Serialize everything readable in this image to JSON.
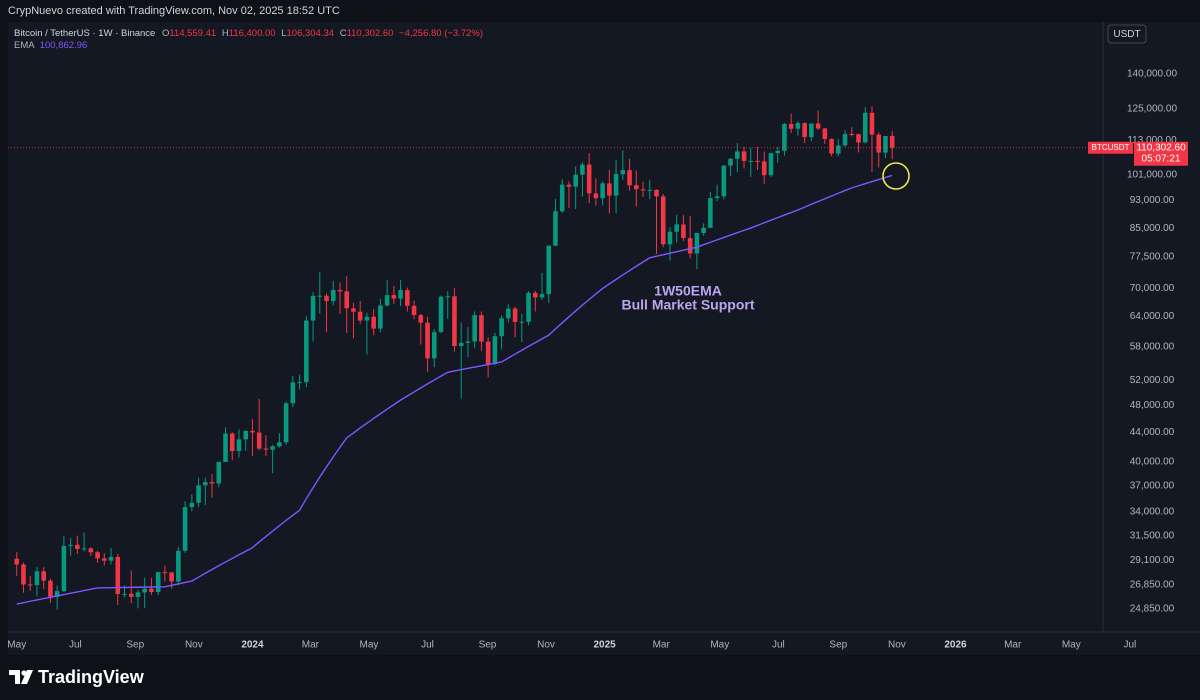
{
  "header": {
    "attribution": "CrypNuevo created with TradingView.com, Nov 02, 2025 18:52 UTC"
  },
  "legend": {
    "symbol": "Bitcoin / TetherUS · 1W · Binance",
    "ohlc": [
      {
        "key": "O",
        "text": "114,559.41"
      },
      {
        "key": "H",
        "text": "116,400.00"
      },
      {
        "key": "L",
        "text": "106,304.34"
      },
      {
        "key": "C",
        "text": "110,302.60"
      }
    ],
    "change": "−4,256.80 (−3.72%)",
    "indicator_value": "100,862.96"
  },
  "currency_button": "USDT",
  "price_tag": {
    "price": "110,302.60",
    "countdown": "05:07:21"
  },
  "footer": {
    "brand": "TradingView"
  },
  "chart_data": {
    "type": "candlestick",
    "log_scale": true,
    "grid": false,
    "annotation": [
      "1W50EMA",
      "Bull Market Support"
    ],
    "xlim": [
      -1.3,
      166.8
    ],
    "xticks": [
      {
        "value": 0,
        "label": "May"
      },
      {
        "value": 8.7,
        "label": "Jul"
      },
      {
        "value": 17.6,
        "label": "Sep"
      },
      {
        "value": 26.3,
        "label": "Nov"
      },
      {
        "value": 35,
        "label": "2024"
      },
      {
        "value": 43.6,
        "label": "Mar"
      },
      {
        "value": 52.3,
        "label": "May"
      },
      {
        "value": 61,
        "label": "Jul"
      },
      {
        "value": 69.9,
        "label": "Sep"
      },
      {
        "value": 78.6,
        "label": "Nov"
      },
      {
        "value": 87.3,
        "label": "2025"
      },
      {
        "value": 95.7,
        "label": "Mar"
      },
      {
        "value": 104.4,
        "label": "May"
      },
      {
        "value": 113.1,
        "label": "Jul"
      },
      {
        "value": 122,
        "label": "Sep"
      },
      {
        "value": 130.7,
        "label": "Nov"
      },
      {
        "value": 139.4,
        "label": "2026"
      },
      {
        "value": 147.9,
        "label": "Mar"
      },
      {
        "value": 156.6,
        "label": "May"
      },
      {
        "value": 165.3,
        "label": "Jul"
      }
    ],
    "ylim": [
      23070,
      165600
    ],
    "yticks": [
      {
        "value": 24850,
        "label": "24,850.00"
      },
      {
        "value": 26850,
        "label": "26,850.00"
      },
      {
        "value": 29100,
        "label": "29,100.00"
      },
      {
        "value": 31500,
        "label": "31,500.00"
      },
      {
        "value": 34000,
        "label": "34,000.00"
      },
      {
        "value": 37000,
        "label": "37,000.00"
      },
      {
        "value": 40000,
        "label": "40,000.00"
      },
      {
        "value": 44000,
        "label": "44,000.00"
      },
      {
        "value": 48000,
        "label": "48,000.00"
      },
      {
        "value": 52000,
        "label": "52,000.00"
      },
      {
        "value": 58000,
        "label": "58,000.00"
      },
      {
        "value": 64000,
        "label": "64,000.00"
      },
      {
        "value": 70000,
        "label": "70,000.00"
      },
      {
        "value": 77500,
        "label": "77,500.00"
      },
      {
        "value": 85000,
        "label": "85,000.00"
      },
      {
        "value": 93000,
        "label": "93,000.00"
      },
      {
        "value": 101000,
        "label": "101,000.00"
      },
      {
        "value": 113000,
        "label": "113,000.00"
      },
      {
        "value": 125000,
        "label": "125,000.00"
      },
      {
        "value": 140000,
        "label": "140,000.00"
      }
    ],
    "series": [
      {
        "name": "BTCUSDT",
        "up_color": "#089981",
        "down_color": "#f23645",
        "open": [
          29230,
          28700,
          26900,
          26850,
          28070,
          27230,
          25840,
          26330,
          30470,
          30580,
          30170,
          30230,
          29850,
          29270,
          29050,
          29400,
          26090,
          26100,
          25840,
          26220,
          26530,
          26250,
          27990,
          27960,
          27160,
          29990,
          34540,
          35030,
          37060,
          37450,
          37280,
          39970,
          43800,
          41400,
          42990,
          44180,
          43950,
          41730,
          41580,
          42030,
          42580,
          48300,
          51680,
          51730,
          63110,
          68360,
          68390,
          67210,
          69650,
          69360,
          65660,
          64940,
          63120,
          63890,
          61490,
          66270,
          68520,
          67760,
          69650,
          66200,
          64250,
          62680,
          55860,
          60800,
          68160,
          68250,
          58120,
          58710,
          58980,
          64220,
          58960,
          54850,
          59990,
          63580,
          65600,
          62820,
          62850,
          69030,
          68000,
          68740,
          80380,
          89850,
          97900,
          97250,
          101110,
          104460,
          95190,
          93720,
          98320,
          94510,
          101300,
          102620,
          97700,
          96470,
          96120,
          96260,
          94270,
          80730,
          84080,
          86080,
          82390,
          78370,
          83760,
          85170,
          93750,
          94300,
          104120,
          106450,
          109000,
          105700,
          105720,
          105550,
          100960,
          108400,
          109200,
          119100,
          117300,
          119450,
          114200,
          119300,
          117400,
          113500,
          108250,
          111150,
          115300,
          115250,
          112200,
          123500,
          115100,
          108600,
          114559.41
        ],
        "high": [
          29850,
          28880,
          27650,
          28450,
          28450,
          27400,
          26800,
          31430,
          31270,
          31500,
          31800,
          30350,
          29990,
          29750,
          30250,
          29690,
          26830,
          28140,
          26430,
          27490,
          27480,
          28050,
          28600,
          28000,
          30360,
          35200,
          35980,
          37980,
          37980,
          38420,
          40000,
          44700,
          44000,
          44400,
          44250,
          45900,
          48970,
          43580,
          42250,
          43880,
          48590,
          52800,
          52990,
          64000,
          69200,
          73780,
          68920,
          71770,
          71350,
          72800,
          66880,
          67250,
          64750,
          65500,
          67700,
          71980,
          70600,
          71950,
          70200,
          67300,
          64500,
          63860,
          61400,
          68400,
          69400,
          70080,
          62700,
          61800,
          65000,
          64990,
          59800,
          60670,
          64150,
          66500,
          66000,
          64500,
          69400,
          69520,
          73600,
          80500,
          93480,
          99600,
          98900,
          103900,
          105250,
          108350,
          99900,
          98980,
          102700,
          106000,
          109350,
          106450,
          102500,
          98830,
          99500,
          96500,
          95000,
          85300,
          88800,
          88750,
          88500,
          83550,
          86400,
          95700,
          97900,
          104300,
          106700,
          111980,
          110700,
          110400,
          110600,
          108950,
          108500,
          110500,
          119500,
          123200,
          120250,
          119800,
          119300,
          124450,
          117600,
          113700,
          113400,
          116800,
          117900,
          115400,
          125700,
          126200,
          115900,
          114000,
          116400
        ],
        "low": [
          27660,
          26200,
          26350,
          25870,
          26500,
          25350,
          24800,
          26250,
          29500,
          29700,
          29950,
          29500,
          28860,
          28600,
          28700,
          25170,
          25780,
          25330,
          24900,
          24930,
          26020,
          26000,
          27160,
          26550,
          26830,
          29800,
          34080,
          34520,
          34800,
          35630,
          36840,
          39970,
          40200,
          40550,
          41420,
          40750,
          41500,
          40700,
          38550,
          41880,
          42260,
          47700,
          50520,
          50900,
          59000,
          64500,
          60760,
          66270,
          64500,
          60660,
          59600,
          62400,
          56550,
          60190,
          60750,
          66050,
          66600,
          66120,
          65000,
          63380,
          58400,
          53500,
          54260,
          60630,
          63460,
          57100,
          49050,
          56100,
          57800,
          57200,
          52550,
          54600,
          57500,
          62700,
          59800,
          58900,
          62150,
          65000,
          67450,
          66800,
          80220,
          89400,
          90800,
          90500,
          94150,
          92200,
          91500,
          91550,
          89200,
          89250,
          99450,
          96000,
          91230,
          94100,
          93400,
          78250,
          80000,
          76600,
          81200,
          81600,
          77100,
          74500,
          83000,
          85100,
          92800,
          93400,
          100700,
          102000,
          103100,
          100400,
          102650,
          98200,
          100400,
          105100,
          107500,
          115700,
          114700,
          112000,
          112650,
          116800,
          111700,
          107300,
          107300,
          110600,
          114400,
          108650,
          111900,
          102000,
          103500,
          106700,
          106304.34
        ],
        "close": [
          28700,
          26900,
          26850,
          28070,
          27230,
          25840,
          26330,
          30470,
          30580,
          30170,
          30230,
          29850,
          29270,
          29050,
          29400,
          26090,
          26100,
          25840,
          26220,
          26530,
          26250,
          27990,
          27960,
          27160,
          29990,
          34540,
          35030,
          37060,
          37450,
          37280,
          39970,
          43800,
          41400,
          42990,
          44180,
          43950,
          41730,
          41580,
          42030,
          42580,
          48300,
          51680,
          51730,
          63110,
          68360,
          68390,
          67210,
          69650,
          69360,
          65660,
          64940,
          63120,
          63890,
          61490,
          66270,
          68520,
          67760,
          69650,
          66200,
          64250,
          62680,
          55860,
          60800,
          68160,
          68250,
          58120,
          58710,
          58980,
          64220,
          58960,
          54850,
          59990,
          63580,
          65600,
          62820,
          62850,
          69030,
          68000,
          68740,
          80380,
          89850,
          97900,
          97250,
          101110,
          104460,
          95190,
          93720,
          98320,
          94510,
          101300,
          102620,
          97700,
          96470,
          96120,
          96260,
          94270,
          80730,
          84080,
          86080,
          82390,
          78370,
          83760,
          85170,
          93750,
          94300,
          104120,
          106450,
          109000,
          105700,
          105720,
          105550,
          100960,
          108400,
          109200,
          119100,
          117300,
          119450,
          114200,
          119300,
          117400,
          113500,
          108250,
          111150,
          115300,
          115250,
          112200,
          123500,
          115100,
          108600,
          114550,
          110302.6
        ]
      },
      {
        "name": "EMA",
        "color": "#7e57ff",
        "values": [
          25250,
          25360,
          25480,
          25590,
          25700,
          25810,
          25930,
          26040,
          26150,
          26260,
          26380,
          26490,
          26600,
          26610,
          26620,
          26630,
          26640,
          26650,
          26660,
          26670,
          26680,
          26690,
          26700,
          26830,
          26950,
          27080,
          27200,
          27540,
          27890,
          28230,
          28580,
          28920,
          29260,
          29610,
          29950,
          30300,
          30860,
          31410,
          31970,
          32530,
          33090,
          33640,
          34200,
          35490,
          36770,
          38060,
          39340,
          40630,
          41910,
          43200,
          43900,
          44600,
          45300,
          46000,
          46700,
          47400,
          48100,
          48800,
          49460,
          50110,
          50770,
          51430,
          52090,
          52740,
          53400,
          53630,
          53850,
          54080,
          54300,
          54530,
          54750,
          54980,
          55200,
          55910,
          56630,
          57340,
          58060,
          58770,
          59490,
          60200,
          61430,
          62650,
          63880,
          65100,
          66330,
          67550,
          68780,
          70000,
          71040,
          72090,
          73130,
          74170,
          75210,
          76260,
          77300,
          77690,
          78070,
          78460,
          78840,
          79230,
          79610,
          80000,
          80640,
          81280,
          81910,
          82550,
          83190,
          83830,
          84460,
          85100,
          85830,
          86560,
          87290,
          88010,
          88740,
          89470,
          90200,
          91040,
          91880,
          92710,
          93550,
          94390,
          95230,
          96060,
          96900,
          97560,
          98220,
          98880,
          99540,
          100200,
          100862.96
        ]
      }
    ]
  }
}
